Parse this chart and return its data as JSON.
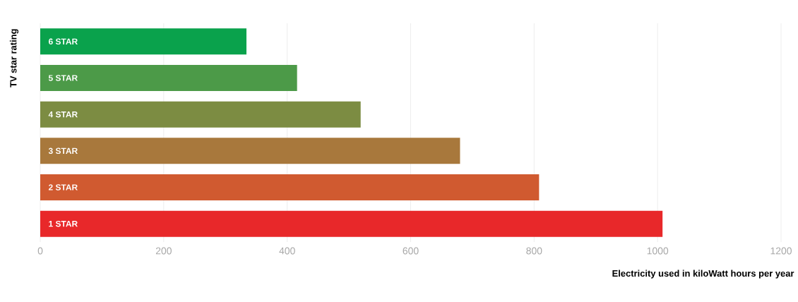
{
  "chart_data": {
    "type": "bar",
    "orientation": "horizontal",
    "ylabel": "TV star rating",
    "xlabel": "Electricity used in kiloWatt hours per year",
    "categories": [
      "6 STAR",
      "5 STAR",
      "4 STAR",
      "3 STAR",
      "2 STAR",
      "1 STAR"
    ],
    "values": [
      334,
      416,
      519,
      680,
      808,
      1008
    ],
    "colors": [
      "#0aa24c",
      "#4c9a48",
      "#7c8c42",
      "#a8783c",
      "#d05a30",
      "#e8282a"
    ],
    "xlim": [
      0,
      1200
    ],
    "xticks": [
      0,
      200,
      400,
      600,
      800,
      1000,
      1200
    ],
    "grid": "x"
  }
}
